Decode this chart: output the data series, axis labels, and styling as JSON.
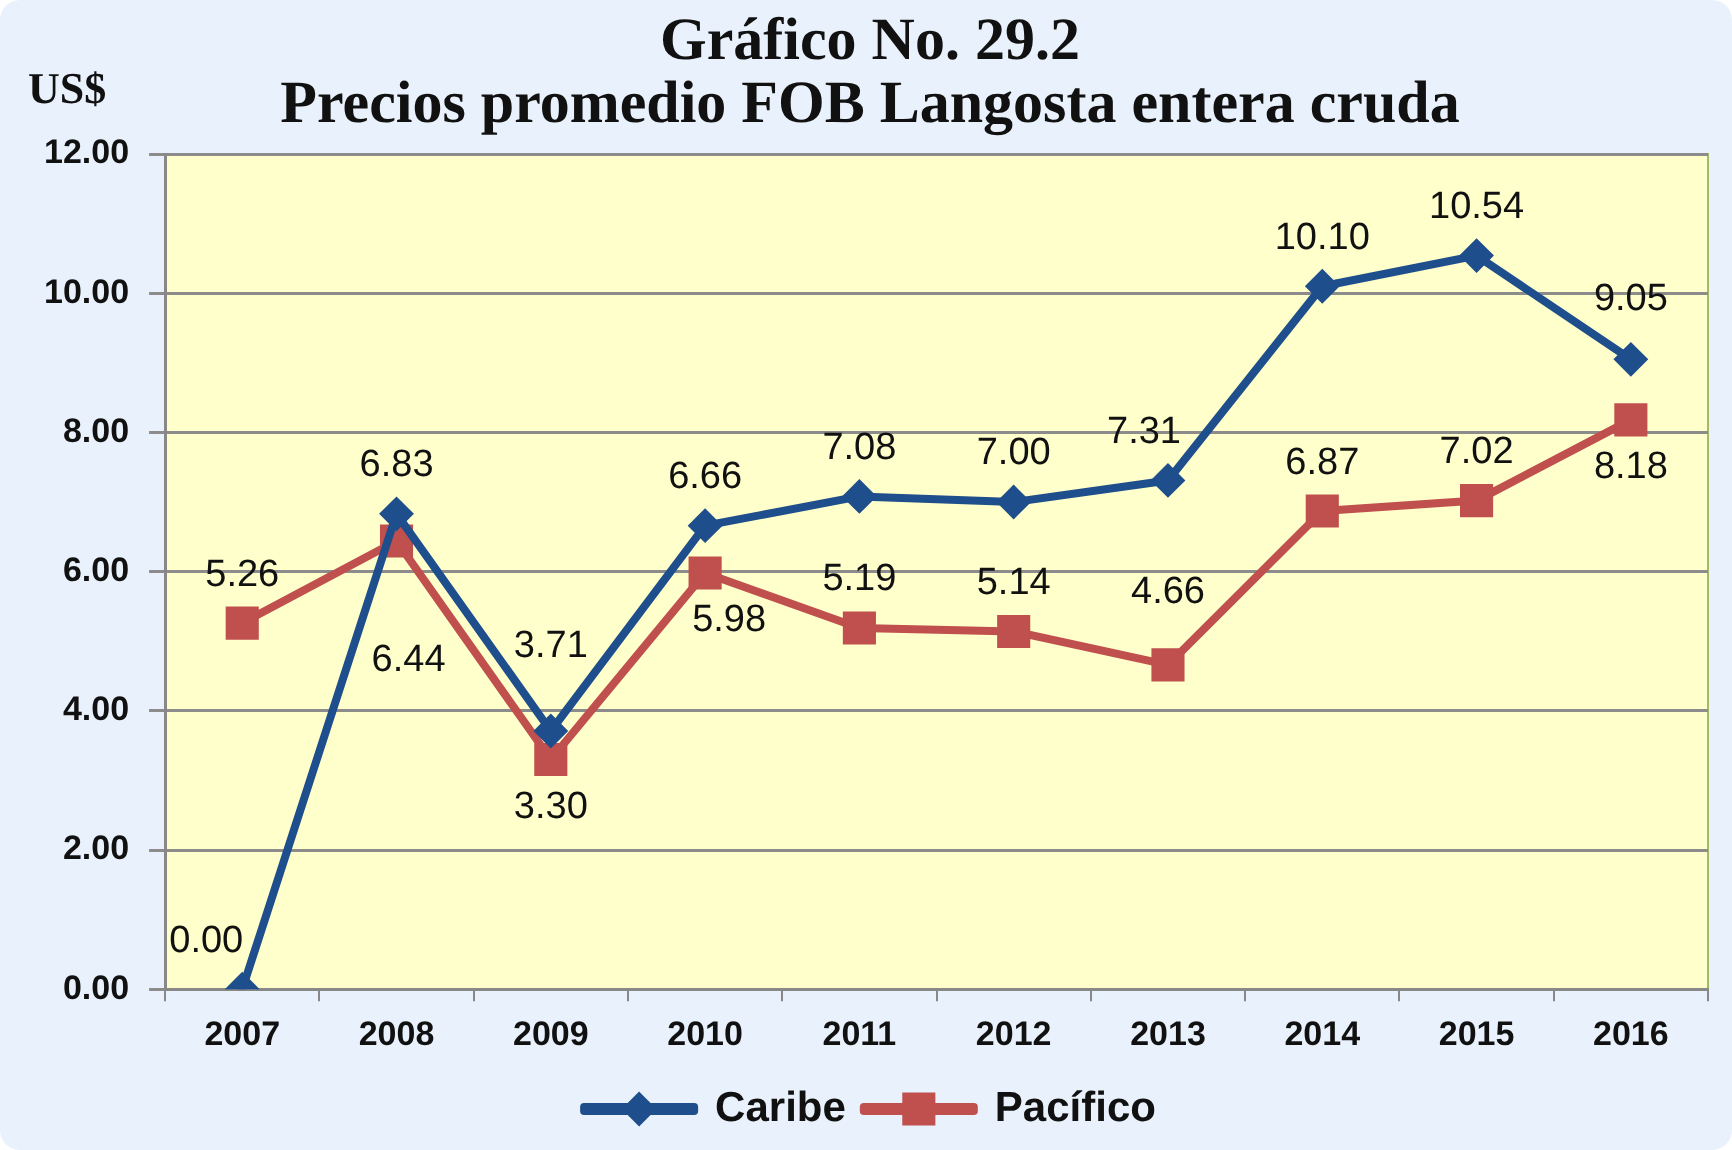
{
  "chart_data": {
    "type": "line",
    "title": "Gráfico No. 29.2",
    "subtitle": "Precios promedio FOB Langosta entera cruda",
    "ylabel": "US$",
    "categories": [
      "2007",
      "2008",
      "2009",
      "2010",
      "2011",
      "2012",
      "2013",
      "2014",
      "2015",
      "2016"
    ],
    "series": [
      {
        "name": "Caribe",
        "color": "#1f4e8c",
        "marker": "diamond",
        "values": [
          0,
          6.83,
          3.71,
          6.66,
          7.08,
          7.0,
          7.31,
          10.1,
          10.54,
          9.05
        ],
        "value_labels": [
          "0.00",
          "6.83",
          "3.71",
          "6.66",
          "7.08",
          "7.00",
          "7.31",
          "10.10",
          "10.54",
          "9.05"
        ]
      },
      {
        "name": "Pacífico",
        "color": "#c0504d",
        "marker": "square",
        "values": [
          5.26,
          6.44,
          3.3,
          5.98,
          5.19,
          5.14,
          4.66,
          6.87,
          7.02,
          8.18
        ],
        "value_labels": [
          "5.26",
          "6.44",
          "3.30",
          "5.98",
          "5.19",
          "5.14",
          "4.66",
          "6.87",
          "7.02",
          "8.18"
        ]
      }
    ],
    "ylim": [
      0,
      12
    ],
    "yticks": [
      {
        "value": 0,
        "label": "0.00"
      },
      {
        "value": 2,
        "label": "2.00"
      },
      {
        "value": 4,
        "label": "4.00"
      },
      {
        "value": 6,
        "label": "6.00"
      },
      {
        "value": 8,
        "label": "8.00"
      },
      {
        "value": 10,
        "label": "10.00"
      },
      {
        "value": 12,
        "label": "12.00"
      }
    ],
    "grid": "y",
    "legend": "bottom",
    "line_style": "solid"
  }
}
